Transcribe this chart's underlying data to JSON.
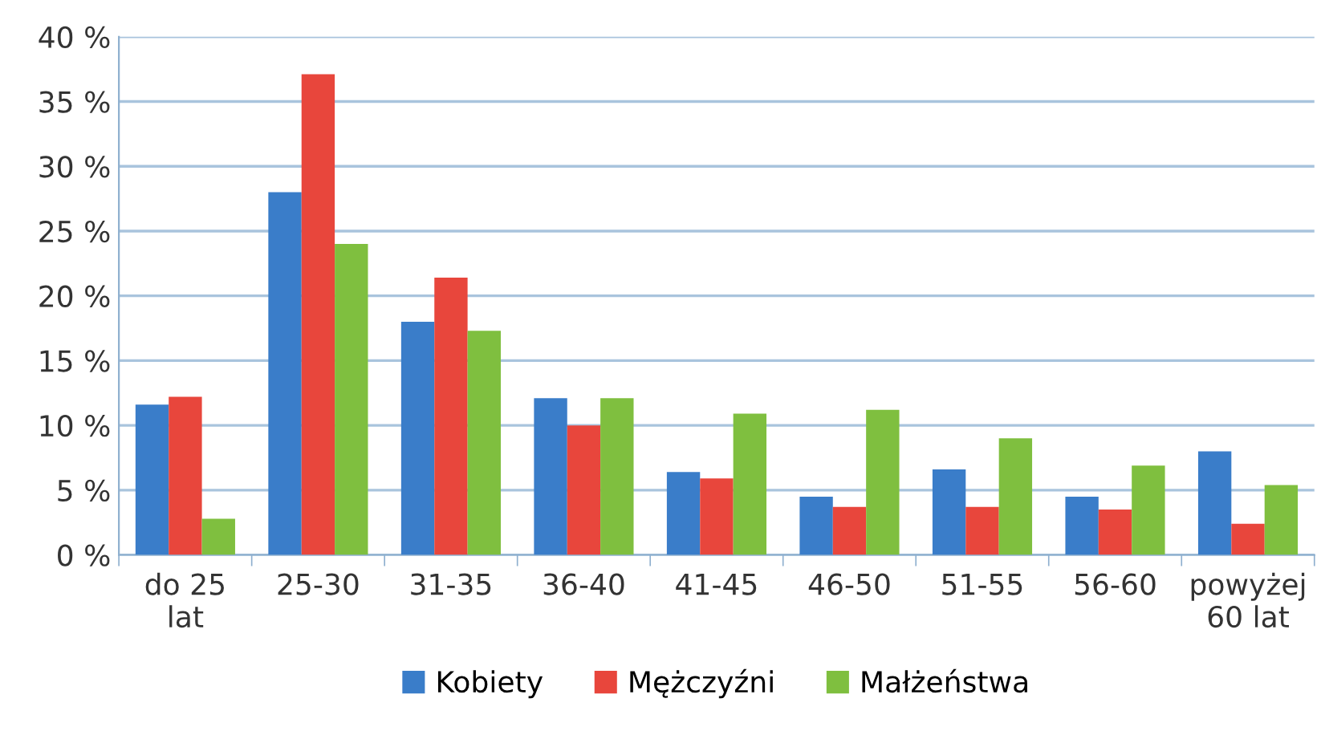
{
  "chart_data": {
    "type": "bar",
    "categories": [
      "do 25\nlat",
      "25-30",
      "31-35",
      "36-40",
      "41-45",
      "46-50",
      "51-55",
      "56-60",
      "powyżej\n60 lat"
    ],
    "series": [
      {
        "name": "Kobiety",
        "color": "#3a7dc9",
        "values": [
          11.6,
          28.0,
          18.0,
          12.1,
          6.4,
          4.5,
          6.6,
          4.5,
          8.0
        ]
      },
      {
        "name": "Mężczyźni",
        "color": "#e8463c",
        "values": [
          12.2,
          37.1,
          21.4,
          10.0,
          5.9,
          3.7,
          3.7,
          3.5,
          2.4
        ]
      },
      {
        "name": "Małżeństwa",
        "color": "#7fbf3f",
        "values": [
          2.8,
          24.0,
          17.3,
          12.1,
          10.9,
          11.2,
          9.0,
          6.9,
          5.4
        ]
      }
    ],
    "ylim": [
      0,
      40
    ],
    "yticks": [
      {
        "value": 0,
        "label": "0 %"
      },
      {
        "value": 5,
        "label": "5 %"
      },
      {
        "value": 10,
        "label": "10 %"
      },
      {
        "value": 15,
        "label": "15 %"
      },
      {
        "value": 20,
        "label": "20 %"
      },
      {
        "value": 25,
        "label": "25 %"
      },
      {
        "value": 30,
        "label": "30 %"
      },
      {
        "value": 35,
        "label": "35 %"
      },
      {
        "value": 40,
        "label": "40 %"
      }
    ],
    "grid": "y",
    "legend": "bottom"
  }
}
